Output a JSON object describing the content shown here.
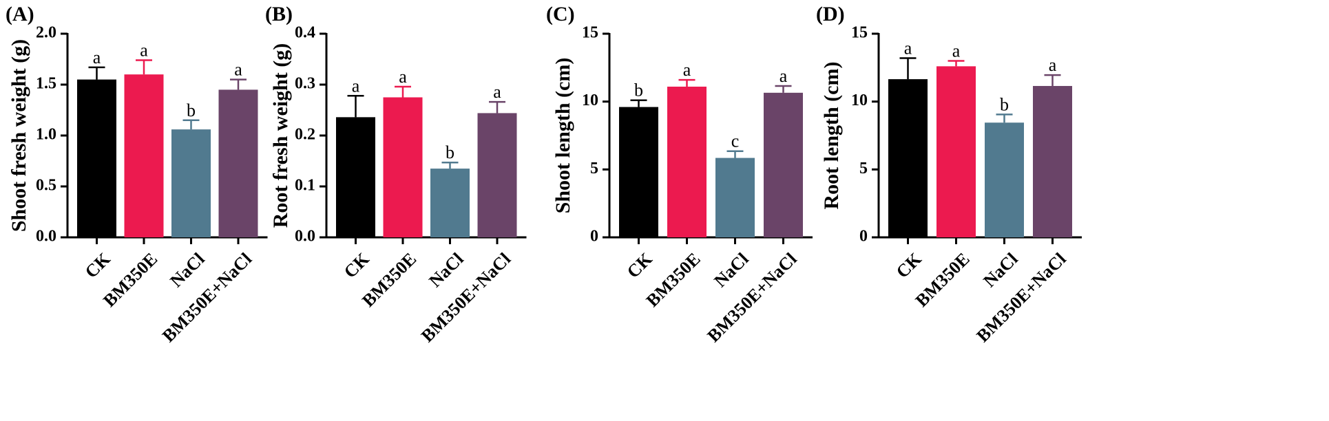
{
  "chart_data": [
    {
      "type": "bar",
      "panel": "(A)",
      "ylabel": "Shoot fresh weight (g)",
      "ylim": [
        0,
        2.0
      ],
      "yticks": [
        "0.0",
        "0.5",
        "1.0",
        "1.5",
        "2.0"
      ],
      "categories": [
        "CK",
        "BM350E",
        "NaCl",
        "BM350E+NaCl"
      ],
      "values": [
        1.55,
        1.6,
        1.06,
        1.45
      ],
      "errors": [
        0.12,
        0.14,
        0.09,
        0.1
      ],
      "significance": [
        "a",
        "a",
        "b",
        "a"
      ]
    },
    {
      "type": "bar",
      "panel": "(B)",
      "ylabel": "Root fresh weight (g)",
      "ylim": [
        0,
        0.4
      ],
      "yticks": [
        "0.0",
        "0.1",
        "0.2",
        "0.3",
        "0.4"
      ],
      "categories": [
        "CK",
        "BM350E",
        "NaCl",
        "BM350E+NaCl"
      ],
      "values": [
        0.236,
        0.275,
        0.135,
        0.244
      ],
      "errors": [
        0.042,
        0.021,
        0.012,
        0.022
      ],
      "significance": [
        "a",
        "a",
        "b",
        "a"
      ]
    },
    {
      "type": "bar",
      "panel": "(C)",
      "ylabel": "Shoot length (cm)",
      "ylim": [
        0,
        15
      ],
      "yticks": [
        "0",
        "5",
        "10",
        "15"
      ],
      "categories": [
        "CK",
        "BM350E",
        "NaCl",
        "BM350E+NaCl"
      ],
      "values": [
        9.6,
        11.1,
        5.85,
        10.65
      ],
      "errors": [
        0.5,
        0.5,
        0.5,
        0.5
      ],
      "significance": [
        "b",
        "a",
        "c",
        "a"
      ]
    },
    {
      "type": "bar",
      "panel": "(D)",
      "ylabel": "Root length (cm)",
      "ylim": [
        0,
        15
      ],
      "yticks": [
        "0",
        "5",
        "10",
        "15"
      ],
      "categories": [
        "CK",
        "BM350E",
        "NaCl",
        "BM350E+NaCl"
      ],
      "values": [
        11.65,
        12.6,
        8.45,
        11.15
      ],
      "errors": [
        1.55,
        0.4,
        0.6,
        0.8
      ],
      "significance": [
        "a",
        "a",
        "b",
        "a"
      ]
    }
  ],
  "colors": {
    "CK": "#000000",
    "BM350E": "#ec1a4f",
    "NaCl": "#517a8f",
    "BM350E+NaCl": "#6a4468",
    "axis": "#000000"
  }
}
